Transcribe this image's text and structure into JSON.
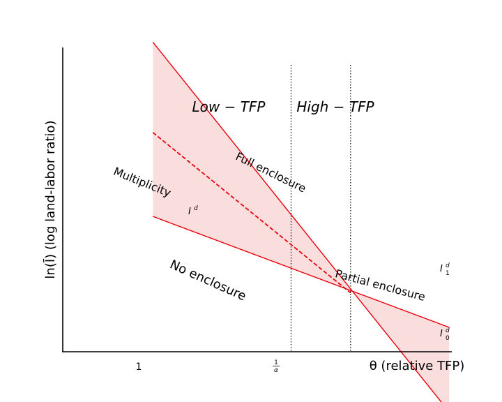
{
  "chart_data": {
    "type": "line",
    "title": "",
    "xlabel": "θ (relative TFP)",
    "ylabel": "ln(Ī) (log land-labor ratio)",
    "x_ticks": [
      {
        "x": 1,
        "label": "1"
      },
      {
        "x": 2,
        "label": "1/α"
      }
    ],
    "xlim": [
      0.07,
      6.5
    ],
    "ylim": [
      -0.78,
      2.06
    ],
    "vlines": [
      {
        "x": 1,
        "style": "dotted"
      },
      {
        "x": 2,
        "style": "dotted"
      }
    ],
    "series": [
      {
        "name": "I_0^d",
        "style": "solid",
        "color": "#e8000b",
        "form": "log-linear",
        "a": 0.5,
        "b": -1.0
      },
      {
        "name": "I_1^d",
        "style": "solid",
        "color": "#e8000b",
        "form": "log-linear",
        "a": 0.0,
        "b": -0.3
      },
      {
        "name": "I^d",
        "style": "dashed",
        "color": "#e8000b",
        "form": "log-linear",
        "a": 0.22,
        "b": -0.65,
        "x_range": [
          0.2,
          2.0
        ]
      }
    ],
    "shaded_region": {
      "between": [
        "I_0^d",
        "I_1^d"
      ],
      "color": "#fadede"
    },
    "annotations": {
      "low_tfp": "Low − TFP",
      "high_tfp": "High − TFP",
      "full_enclosure": "Full enclosure",
      "multiplicity": "Multiplicity",
      "no_enclosure": "No enclosure",
      "partial_enclosure": "Partial enclosure",
      "id_label": "I^d",
      "i1_label": "I_1^d",
      "i0_label": "I_0^d"
    }
  }
}
